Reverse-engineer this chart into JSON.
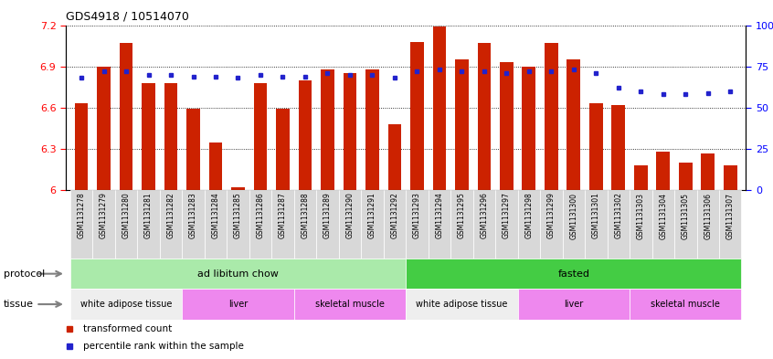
{
  "title": "GDS4918 / 10514070",
  "samples": [
    "GSM1131278",
    "GSM1131279",
    "GSM1131280",
    "GSM1131281",
    "GSM1131282",
    "GSM1131283",
    "GSM1131284",
    "GSM1131285",
    "GSM1131286",
    "GSM1131287",
    "GSM1131288",
    "GSM1131289",
    "GSM1131290",
    "GSM1131291",
    "GSM1131292",
    "GSM1131293",
    "GSM1131294",
    "GSM1131295",
    "GSM1131296",
    "GSM1131297",
    "GSM1131298",
    "GSM1131299",
    "GSM1131300",
    "GSM1131301",
    "GSM1131302",
    "GSM1131303",
    "GSM1131304",
    "GSM1131305",
    "GSM1131306",
    "GSM1131307"
  ],
  "red_values": [
    6.63,
    6.9,
    7.07,
    6.78,
    6.78,
    6.59,
    6.35,
    6.02,
    6.78,
    6.59,
    6.8,
    6.88,
    6.85,
    6.88,
    6.48,
    7.08,
    7.19,
    6.95,
    7.07,
    6.93,
    6.9,
    7.07,
    6.95,
    6.63,
    6.62,
    6.18,
    6.28,
    6.2,
    6.27,
    6.18
  ],
  "blue_values": [
    68,
    72,
    72,
    70,
    70,
    69,
    69,
    68,
    70,
    69,
    69,
    71,
    70,
    70,
    68,
    72,
    73,
    72,
    72,
    71,
    72,
    72,
    73,
    71,
    62,
    60,
    58,
    58,
    59,
    60
  ],
  "ylim_left": [
    6.0,
    7.2
  ],
  "ylim_right": [
    0,
    100
  ],
  "yticks_left": [
    6.0,
    6.3,
    6.6,
    6.9,
    7.2
  ],
  "yticks_right": [
    0,
    25,
    50,
    75,
    100
  ],
  "ytick_labels_left": [
    "6",
    "6.3",
    "6.6",
    "6.9",
    "7.2"
  ],
  "ytick_labels_right": [
    "0",
    "25",
    "50",
    "75",
    "100%"
  ],
  "bar_color": "#cc2200",
  "dot_color": "#2222cc",
  "protocol_groups": [
    {
      "label": "ad libitum chow",
      "start": 0,
      "end": 14,
      "color": "#aaeaaa"
    },
    {
      "label": "fasted",
      "start": 15,
      "end": 29,
      "color": "#44cc44"
    }
  ],
  "tissue_groups": [
    {
      "label": "white adipose tissue",
      "start": 0,
      "end": 4,
      "color": "#eeeeee"
    },
    {
      "label": "liver",
      "start": 5,
      "end": 9,
      "color": "#ee88ee"
    },
    {
      "label": "skeletal muscle",
      "start": 10,
      "end": 14,
      "color": "#ee88ee"
    },
    {
      "label": "white adipose tissue",
      "start": 15,
      "end": 19,
      "color": "#eeeeee"
    },
    {
      "label": "liver",
      "start": 20,
      "end": 24,
      "color": "#ee88ee"
    },
    {
      "label": "skeletal muscle",
      "start": 25,
      "end": 29,
      "color": "#ee88ee"
    }
  ],
  "legend_items": [
    {
      "label": "transformed count",
      "color": "#cc2200"
    },
    {
      "label": "percentile rank within the sample",
      "color": "#2222cc"
    }
  ],
  "xtick_bg": "#d8d8d8",
  "protocol_label": "protocol",
  "tissue_label": "tissue"
}
